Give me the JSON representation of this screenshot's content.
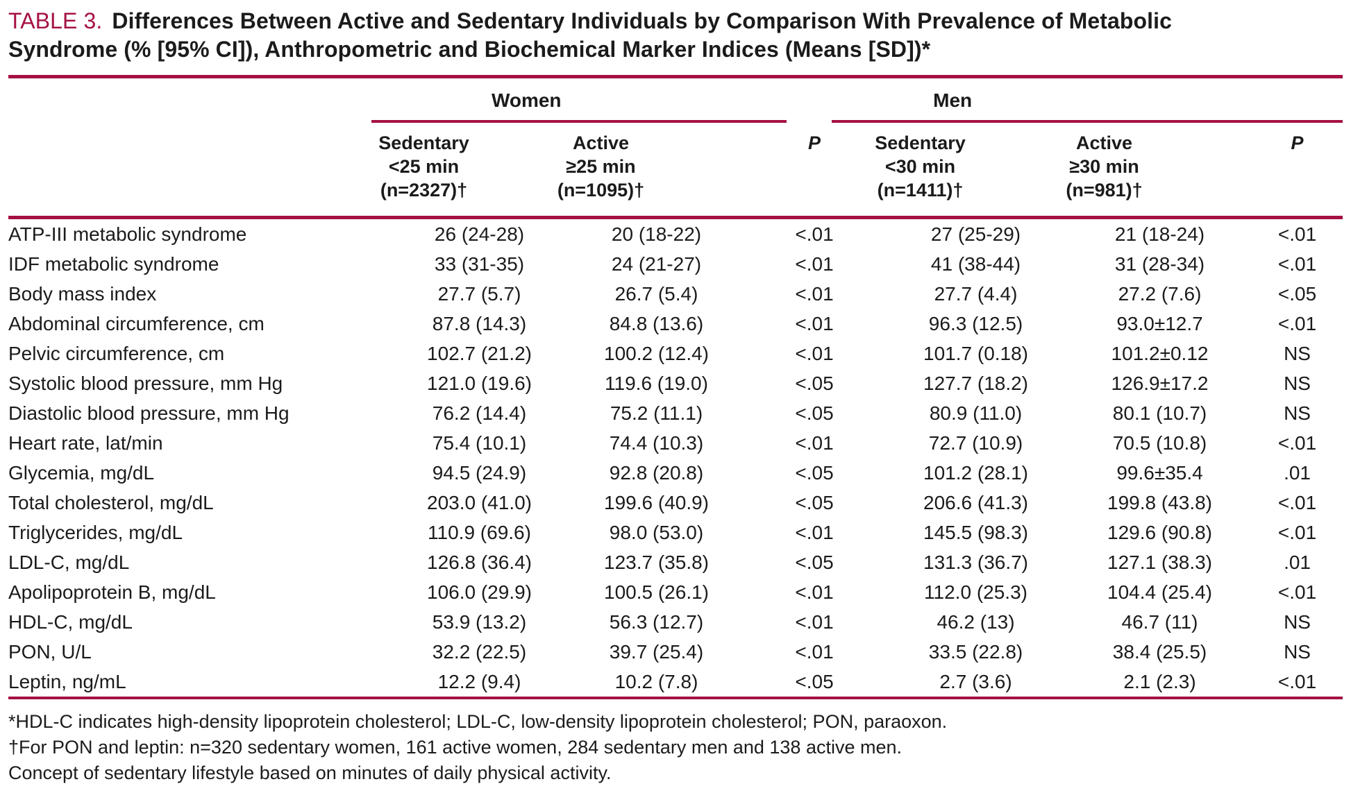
{
  "title": {
    "tag": "TABLE 3.",
    "line1": "Differences Between Active and Sedentary Individuals by Comparison With Prevalence of Metabolic",
    "line2": "Syndrome (% [95% CI]), Anthropometric and Biochemical Marker Indices (Means [SD])*"
  },
  "colors": {
    "accent": "#A51142",
    "text": "#1B1B1B"
  },
  "table": {
    "groups": {
      "women": "Women",
      "men": "Men"
    },
    "columns": {
      "women_sedentary": [
        "Sedentary",
        "<25 min",
        "(n=2327)†"
      ],
      "women_active": [
        "Active",
        "≥25 min",
        "(n=1095)†"
      ],
      "women_p": "P",
      "men_sedentary": [
        "Sedentary",
        "<30 min",
        "(n=1411)†"
      ],
      "men_active": [
        "Active",
        "≥30 min",
        "(n=981)†"
      ],
      "men_p": "P"
    },
    "rows": [
      {
        "label": "ATP-III metabolic syndrome",
        "women_sedentary": "26 (24-28)",
        "women_active": "20 (18-22)",
        "women_p": "<.01",
        "men_sedentary": "27 (25-29)",
        "men_active": "21 (18-24)",
        "men_p": "<.01"
      },
      {
        "label": "IDF metabolic syndrome",
        "women_sedentary": "33 (31-35)",
        "women_active": "24 (21-27)",
        "women_p": "<.01",
        "men_sedentary": "41 (38-44)",
        "men_active": "31 (28-34)",
        "men_p": "<.01"
      },
      {
        "label": "Body mass index",
        "women_sedentary": "27.7 (5.7)",
        "women_active": "26.7 (5.4)",
        "women_p": "<.01",
        "men_sedentary": "27.7 (4.4)",
        "men_active": "27.2 (7.6)",
        "men_p": "<.05"
      },
      {
        "label": "Abdominal circumference, cm",
        "women_sedentary": "87.8 (14.3)",
        "women_active": "84.8 (13.6)",
        "women_p": "<.01",
        "men_sedentary": "96.3 (12.5)",
        "men_active": "93.0±12.7",
        "men_p": "<.01"
      },
      {
        "label": "Pelvic circumference, cm",
        "women_sedentary": "102.7 (21.2)",
        "women_active": "100.2 (12.4)",
        "women_p": "<.01",
        "men_sedentary": "101.7 (0.18)",
        "men_active": "101.2±0.12",
        "men_p": "NS"
      },
      {
        "label": "Systolic blood pressure, mm  Hg",
        "women_sedentary": "121.0 (19.6)",
        "women_active": "119.6 (19.0)",
        "women_p": "<.05",
        "men_sedentary": "127.7 (18.2)",
        "men_active": "126.9±17.2",
        "men_p": "NS"
      },
      {
        "label": "Diastolic blood pressure, mm  Hg",
        "women_sedentary": "76.2 (14.4)",
        "women_active": "75.2 (11.1)",
        "women_p": "<.05",
        "men_sedentary": "80.9 (11.0)",
        "men_active": "80.1 (10.7)",
        "men_p": "NS"
      },
      {
        "label": "Heart rate, lat/min",
        "women_sedentary": "75.4 (10.1)",
        "women_active": "74.4 (10.3)",
        "women_p": "<.01",
        "men_sedentary": "72.7 (10.9)",
        "men_active": "70.5 (10.8)",
        "men_p": "<.01"
      },
      {
        "label": "Glycemia, mg/dL",
        "women_sedentary": "94.5 (24.9)",
        "women_active": "92.8 (20.8)",
        "women_p": "<.05",
        "men_sedentary": "101.2 (28.1)",
        "men_active": "99.6±35.4",
        "men_p": ".01"
      },
      {
        "label": "Total cholesterol, mg/dL",
        "women_sedentary": "203.0 (41.0)",
        "women_active": "199.6 (40.9)",
        "women_p": "<.05",
        "men_sedentary": "206.6 (41.3)",
        "men_active": "199.8 (43.8)",
        "men_p": "<.01"
      },
      {
        "label": "Triglycerides, mg/dL",
        "women_sedentary": "110.9 (69.6)",
        "women_active": "98.0 (53.0)",
        "women_p": "<.01",
        "men_sedentary": "145.5 (98.3)",
        "men_active": "129.6 (90.8)",
        "men_p": "<.01"
      },
      {
        "label": "LDL-C, mg/dL",
        "women_sedentary": "126.8 (36.4)",
        "women_active": "123.7 (35.8)",
        "women_p": "<.05",
        "men_sedentary": "131.3 (36.7)",
        "men_active": "127.1 (38.3)",
        "men_p": ".01"
      },
      {
        "label": "Apolipoprotein B, mg/dL",
        "women_sedentary": "106.0 (29.9)",
        "women_active": "100.5 (26.1)",
        "women_p": "<.01",
        "men_sedentary": "112.0 (25.3)",
        "men_active": "104.4 (25.4)",
        "men_p": "<.01"
      },
      {
        "label": "HDL-C, mg/dL",
        "women_sedentary": "53.9 (13.2)",
        "women_active": "56.3 (12.7)",
        "women_p": "<.01",
        "men_sedentary": "46.2 (13)",
        "men_active": "46.7 (11)",
        "men_p": "NS"
      },
      {
        "label": "PON, U/L",
        "women_sedentary": "32.2 (22.5)",
        "women_active": "39.7 (25.4)",
        "women_p": "<.01",
        "men_sedentary": "33.5 (22.8)",
        "men_active": "38.4 (25.5)",
        "men_p": "NS"
      },
      {
        "label": "Leptin, ng/mL",
        "women_sedentary": "12.2 (9.4)",
        "women_active": "10.2 (7.8)",
        "women_p": "<.05",
        "men_sedentary": "2.7 (3.6)",
        "men_active": "2.1 (2.3)",
        "men_p": "<.01"
      }
    ]
  },
  "footnotes": [
    "*HDL-C indicates high-density lipoprotein cholesterol; LDL-C, low-density lipoprotein cholesterol; PON, paraoxon.",
    "†For PON and leptin: n=320 sedentary women, 161 active women, 284 sedentary men and 138 active men.",
    "Concept of sedentary lifestyle based on minutes of daily physical activity."
  ]
}
